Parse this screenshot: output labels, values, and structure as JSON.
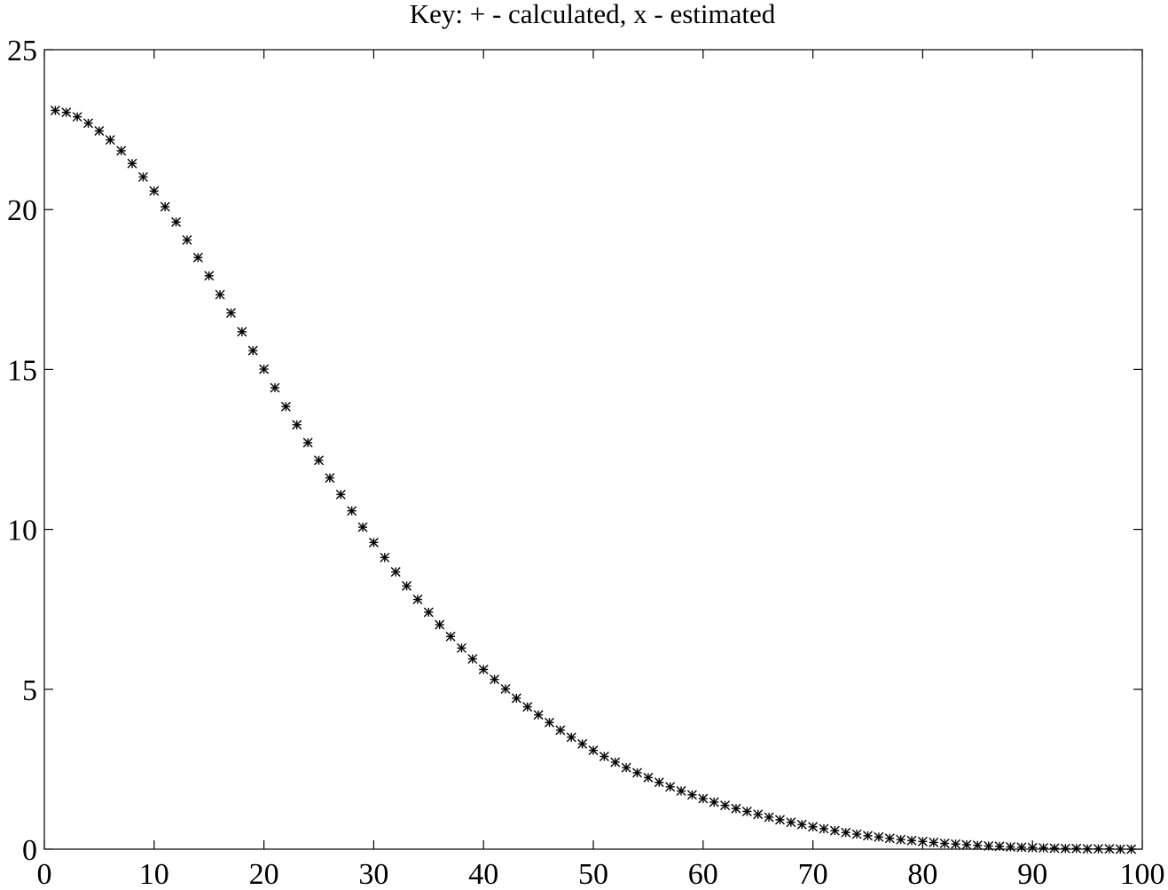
{
  "chart_data": {
    "type": "scatter",
    "title": "Key:  + - calculated, x - estimated",
    "xlabel": "",
    "ylabel": "",
    "xlim": [
      0,
      100
    ],
    "ylim": [
      0,
      25
    ],
    "x_ticks": [
      "0",
      "10",
      "20",
      "30",
      "40",
      "50",
      "60",
      "70",
      "80",
      "90",
      "100"
    ],
    "y_ticks": [
      "0",
      "5",
      "10",
      "15",
      "20",
      "25"
    ],
    "grid": false,
    "legend": "none",
    "series": [
      {
        "marker": "+",
        "x": [
          1,
          2,
          3,
          4,
          5,
          6,
          7,
          8,
          9,
          10,
          11,
          12,
          13,
          14,
          15,
          16,
          17,
          18,
          19,
          20,
          21,
          22,
          23,
          24,
          25,
          26,
          27,
          28,
          29,
          30,
          31,
          32,
          33,
          34,
          35,
          36,
          37,
          38,
          39,
          40,
          41,
          42,
          43,
          44,
          45,
          46,
          47,
          48,
          49,
          50,
          51,
          52,
          53,
          54,
          55,
          56,
          57,
          58,
          59,
          60,
          61,
          62,
          63,
          64,
          65,
          66,
          67,
          68,
          69,
          70,
          71,
          72,
          73,
          74,
          75,
          76,
          77,
          78,
          79,
          80,
          81,
          82,
          83,
          84,
          85,
          86,
          87,
          88,
          89,
          90,
          91,
          92,
          93,
          94,
          95,
          96,
          97,
          98,
          99
        ],
        "y": [
          23.1,
          23.04,
          22.9,
          22.7,
          22.46,
          22.18,
          21.84,
          21.44,
          21.02,
          20.58,
          20.09,
          19.61,
          19.05,
          18.5,
          17.93,
          17.34,
          16.77,
          16.18,
          15.59,
          15.01,
          14.43,
          13.84,
          13.27,
          12.71,
          12.16,
          11.61,
          11.09,
          10.58,
          10.07,
          9.59,
          9.12,
          8.67,
          8.23,
          7.81,
          7.41,
          7.02,
          6.65,
          6.29,
          5.95,
          5.62,
          5.31,
          5.01,
          4.72,
          4.45,
          4.2,
          3.96,
          3.72,
          3.5,
          3.29,
          3.09,
          2.9,
          2.72,
          2.55,
          2.39,
          2.24,
          2.09,
          1.95,
          1.82,
          1.7,
          1.58,
          1.47,
          1.37,
          1.27,
          1.18,
          1.09,
          1.0,
          0.92,
          0.84,
          0.77,
          0.7,
          0.64,
          0.58,
          0.52,
          0.47,
          0.42,
          0.38,
          0.34,
          0.3,
          0.27,
          0.24,
          0.21,
          0.18,
          0.16,
          0.14,
          0.12,
          0.1,
          0.09,
          0.07,
          0.06,
          0.05,
          0.04,
          0.03,
          0.02,
          0.02,
          0.01,
          0.01,
          0.01,
          0.0,
          0.0
        ]
      },
      {
        "marker": "x",
        "x": [
          1,
          2,
          3,
          4,
          5,
          6,
          7,
          8,
          9,
          10,
          11,
          12,
          13,
          14,
          15,
          16,
          17,
          18,
          19,
          20,
          21,
          22,
          23,
          24,
          25,
          26,
          27,
          28,
          29,
          30,
          31,
          32,
          33,
          34,
          35,
          36,
          37,
          38,
          39,
          40,
          41,
          42,
          43,
          44,
          45,
          46,
          47,
          48,
          49,
          50,
          51,
          52,
          53,
          54,
          55,
          56,
          57,
          58,
          59,
          60,
          61,
          62,
          63,
          64,
          65,
          66,
          67,
          68,
          69,
          70,
          71,
          72,
          73,
          74,
          75,
          76,
          77,
          78,
          79,
          80,
          81,
          82,
          83,
          84,
          85,
          86,
          87,
          88,
          89,
          90,
          91,
          92,
          93,
          94,
          95,
          96,
          97,
          98,
          99
        ],
        "y": [
          23.1,
          23.04,
          22.9,
          22.7,
          22.46,
          22.18,
          21.84,
          21.44,
          21.02,
          20.58,
          20.09,
          19.61,
          19.05,
          18.5,
          17.93,
          17.34,
          16.77,
          16.18,
          15.59,
          15.01,
          14.43,
          13.84,
          13.27,
          12.71,
          12.16,
          11.61,
          11.09,
          10.58,
          10.07,
          9.59,
          9.12,
          8.67,
          8.23,
          7.81,
          7.41,
          7.02,
          6.65,
          6.29,
          5.95,
          5.62,
          5.31,
          5.01,
          4.72,
          4.45,
          4.2,
          3.96,
          3.72,
          3.5,
          3.29,
          3.09,
          2.9,
          2.72,
          2.55,
          2.39,
          2.24,
          2.09,
          1.95,
          1.82,
          1.7,
          1.58,
          1.47,
          1.37,
          1.27,
          1.18,
          1.09,
          1.0,
          0.92,
          0.84,
          0.77,
          0.7,
          0.64,
          0.58,
          0.52,
          0.47,
          0.42,
          0.38,
          0.34,
          0.3,
          0.27,
          0.24,
          0.21,
          0.18,
          0.16,
          0.14,
          0.12,
          0.1,
          0.09,
          0.07,
          0.06,
          0.05,
          0.04,
          0.03,
          0.02,
          0.02,
          0.01,
          0.01,
          0.01,
          0.0,
          0.0
        ]
      }
    ]
  }
}
